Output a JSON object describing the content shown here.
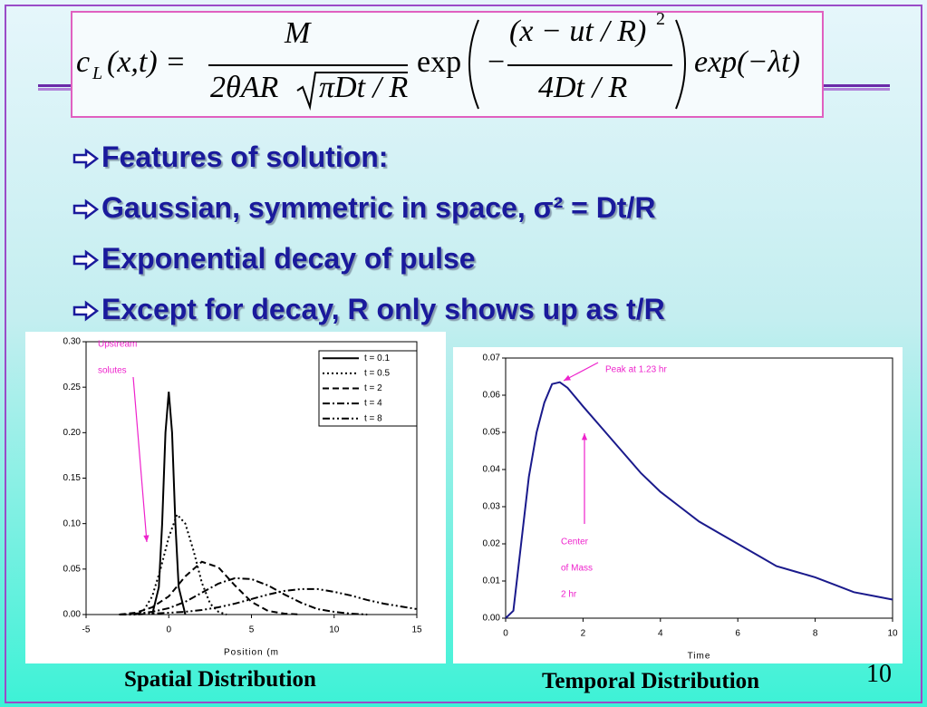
{
  "formula": {
    "lhs": "c",
    "lhs_sub": "L",
    "lhs_args": "(x,t) =",
    "numerator": "M",
    "denominator_pre": "2θAR",
    "denominator_root": "πDt / R",
    "exp1": "exp",
    "neg": "−",
    "exp_num": "(x − ut / R)",
    "exp_num_pow": "2",
    "exp_den": "4Dt / R",
    "exp2": "exp(−λt)"
  },
  "bullets": [
    "Features of solution:",
    "Gaussian, symmetric in space, σ² = Dt/R",
    "Exponential decay of pulse",
    "Except for decay, R only shows up as t/R"
  ],
  "page_number": "10",
  "chart_data": [
    {
      "type": "line",
      "title": "Spatial Distribution",
      "xlabel": "Position (m",
      "xlim": [
        -5,
        15
      ],
      "xticks": [
        -5,
        0,
        5,
        10,
        15
      ],
      "ylim": [
        0,
        0.3
      ],
      "yticks": [
        {
          "value": 0,
          "label": "0.00"
        },
        0.05,
        {
          "value": 0.1,
          "label": "0.10"
        },
        0.15,
        {
          "value": 0.2,
          "label": "0.20"
        },
        0.25,
        {
          "value": 0.3,
          "label": "0.30"
        }
      ],
      "legend": "upper right",
      "annotations": [
        {
          "lines": [
            "Upstream",
            "solutes"
          ],
          "color": "#ee22cc"
        }
      ],
      "series": [
        {
          "name": "t = 0.1",
          "color": "#000000",
          "dash": "solid",
          "x": [
            -1,
            -0.6,
            -0.4,
            -0.2,
            0,
            0.2,
            0.4,
            0.6,
            1
          ],
          "values": [
            0,
            0.03,
            0.1,
            0.2,
            0.245,
            0.2,
            0.1,
            0.03,
            0
          ]
        },
        {
          "name": "t = 0.5",
          "color": "#000000",
          "dash": "dotted",
          "x": [
            -2,
            -1.5,
            -1,
            -0.5,
            0,
            0.5,
            1,
            1.5,
            2,
            2.5,
            3,
            3.5
          ],
          "values": [
            0,
            0.005,
            0.02,
            0.05,
            0.085,
            0.11,
            0.1,
            0.07,
            0.035,
            0.012,
            0.003,
            0
          ]
        },
        {
          "name": "t = 2",
          "color": "#000000",
          "dash": "dashed",
          "x": [
            -3,
            -2,
            -1,
            0,
            1,
            2,
            3,
            4,
            5,
            6,
            7,
            8
          ],
          "values": [
            0,
            0.002,
            0.008,
            0.02,
            0.042,
            0.058,
            0.052,
            0.032,
            0.014,
            0.004,
            0.001,
            0
          ]
        },
        {
          "name": "t = 4",
          "color": "#000000",
          "dash": "dashdot",
          "x": [
            -3,
            -2,
            -1,
            0,
            1,
            2,
            3,
            4,
            5,
            6,
            7,
            8,
            9,
            10,
            11,
            12
          ],
          "values": [
            0,
            0.001,
            0.003,
            0.007,
            0.014,
            0.024,
            0.034,
            0.04,
            0.039,
            0.032,
            0.022,
            0.013,
            0.006,
            0.003,
            0.001,
            0
          ]
        },
        {
          "name": "t = 8",
          "color": "#000000",
          "dash": "dashdotdot",
          "x": [
            -3,
            -2,
            -1,
            0,
            1,
            2,
            3,
            4,
            5,
            6,
            7,
            8,
            9,
            10,
            11,
            12,
            13,
            14,
            15
          ],
          "values": [
            0,
            0,
            0.001,
            0.002,
            0.003,
            0.005,
            0.008,
            0.012,
            0.017,
            0.022,
            0.026,
            0.028,
            0.028,
            0.025,
            0.021,
            0.016,
            0.012,
            0.009,
            0.006
          ]
        }
      ]
    },
    {
      "type": "line",
      "title": "Temporal Distribution",
      "xlabel": "Time",
      "xlim": [
        0,
        10
      ],
      "xticks": [
        0,
        2,
        4,
        6,
        8,
        10
      ],
      "ylim": [
        0,
        0.07
      ],
      "yticks": [
        {
          "value": 0,
          "label": "0.00"
        },
        0.01,
        0.02,
        0.03,
        0.04,
        0.05,
        0.06,
        0.07
      ],
      "annotations": [
        {
          "lines": [
            "Peak at 1.23 hr"
          ],
          "color": "#ee22cc"
        },
        {
          "lines": [
            "Center",
            "of Mass",
            "2 hr"
          ],
          "color": "#ee22cc"
        }
      ],
      "series": [
        {
          "color": "#1a1a8c",
          "dash": "solid",
          "x": [
            0,
            0.2,
            0.4,
            0.6,
            0.8,
            1,
            1.2,
            1.4,
            1.6,
            2,
            2.5,
            3,
            3.5,
            4,
            4.5,
            5,
            5.5,
            6,
            6.5,
            7,
            7.5,
            8,
            8.5,
            9,
            9.5,
            10
          ],
          "values": [
            0,
            0.002,
            0.02,
            0.038,
            0.05,
            0.058,
            0.063,
            0.0635,
            0.062,
            0.057,
            0.051,
            0.045,
            0.039,
            0.034,
            0.03,
            0.026,
            0.023,
            0.02,
            0.017,
            0.014,
            0.0125,
            0.011,
            0.009,
            0.007,
            0.006,
            0.005
          ]
        }
      ]
    }
  ]
}
